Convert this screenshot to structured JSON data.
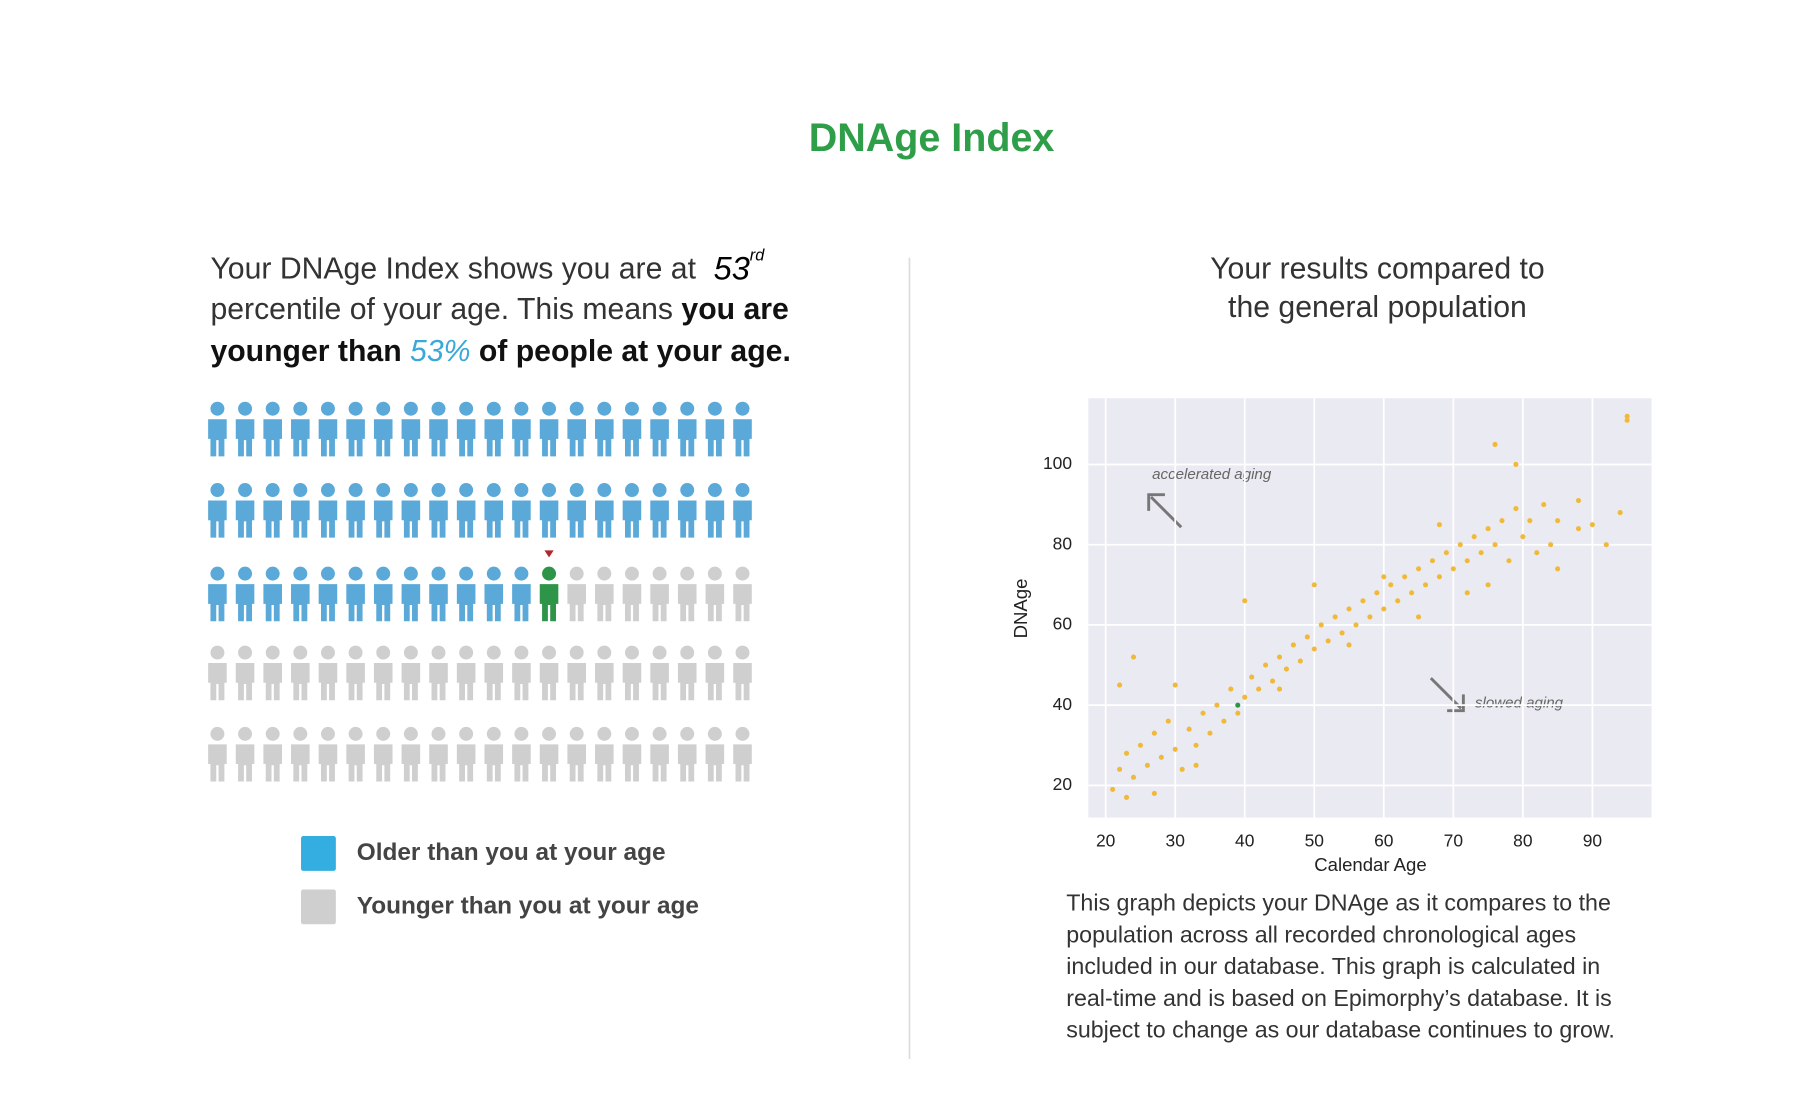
{
  "header": {
    "title": "DNAge Index"
  },
  "summary": {
    "intro": "Your DNAge Index shows you are at ",
    "percentile": 53,
    "ordinal_suffix": "rd",
    "line2_plain": "percentile of your age. This means ",
    "line2_bold": "you are",
    "line3_bold_start": "younger than ",
    "percent_label": "53%",
    "line3_bold_end": " of people at your age."
  },
  "pictogram": {
    "older": 52,
    "you": 1,
    "younger": 47,
    "older_color": "#5aa9d8",
    "you_color": "#2e9447",
    "younger_color": "#cfcfcf",
    "marker_color": "#b0282e"
  },
  "legend": {
    "items": [
      {
        "label": "Older than you at your age",
        "color": "#34aee0"
      },
      {
        "label": "Younger than you at your age",
        "color": "#cfcfcf"
      }
    ]
  },
  "chart_data": {
    "type": "scatter",
    "title": [
      "Your results compared to",
      "the general population"
    ],
    "x_label": "Calendar Age",
    "y_label": "DNAge",
    "xlim": [
      17.5,
      98.5
    ],
    "ylim": [
      12,
      116.5
    ],
    "xticks": [
      20,
      30,
      40,
      50,
      60,
      70,
      80,
      90
    ],
    "yticks": [
      20,
      40,
      60,
      80,
      100
    ],
    "grid": true,
    "background": "#eaeaf2",
    "annotations": [
      "accelerated aging",
      "slowed aging"
    ],
    "series": [
      {
        "color": "#f0b93a",
        "x": [
          21,
          22,
          23,
          23,
          24,
          25,
          26,
          27,
          28,
          29,
          30,
          31,
          32,
          33,
          34,
          35,
          36,
          37,
          38,
          39,
          40,
          41,
          42,
          43,
          44,
          45,
          46,
          47,
          48,
          49,
          50,
          51,
          52,
          53,
          54,
          55,
          56,
          57,
          58,
          59,
          60,
          61,
          62,
          63,
          64,
          65,
          66,
          67,
          68,
          69,
          70,
          71,
          72,
          73,
          74,
          75,
          76,
          77,
          78,
          79,
          80,
          81,
          82,
          83,
          84,
          85,
          88,
          88,
          90,
          92,
          94,
          95,
          95,
          76,
          79,
          22,
          24,
          40,
          30,
          55,
          45,
          65,
          72,
          60,
          50,
          68,
          75,
          33,
          27,
          85
        ],
        "values": [
          19,
          24,
          17,
          28,
          22,
          30,
          25,
          33,
          27,
          36,
          29,
          24,
          34,
          30,
          38,
          33,
          40,
          36,
          44,
          38,
          42,
          47,
          44,
          50,
          46,
          52,
          49,
          55,
          51,
          57,
          54,
          60,
          56,
          62,
          58,
          64,
          60,
          66,
          62,
          68,
          64,
          70,
          66,
          72,
          68,
          74,
          70,
          76,
          72,
          78,
          74,
          80,
          76,
          82,
          78,
          84,
          80,
          86,
          76,
          89,
          82,
          86,
          78,
          90,
          80,
          86,
          84,
          91,
          85,
          80,
          88,
          111,
          112,
          105,
          100,
          45,
          52,
          66,
          45,
          55,
          44,
          62,
          68,
          72,
          70,
          85,
          70,
          25,
          18,
          74
        ]
      },
      {
        "color": "#2e9447",
        "x": [
          39
        ],
        "values": [
          40
        ]
      }
    ]
  },
  "caption": [
    "This graph depicts your DNAge as it compares to the",
    "population across all recorded chronological ages",
    "included in our database. This graph is calculated in",
    "real-time and is based on Epimorphy’s database. It is",
    "subject to change as our database continues to grow."
  ]
}
